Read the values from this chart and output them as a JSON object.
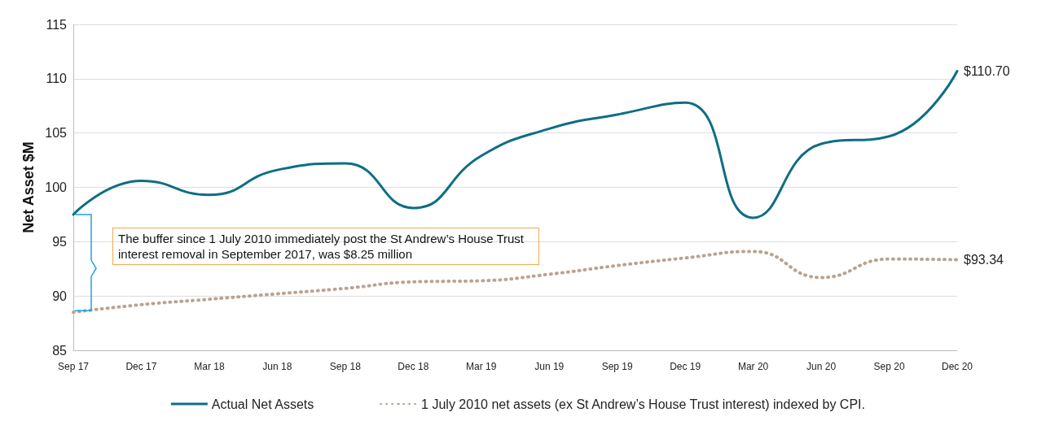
{
  "chart_data": {
    "type": "line",
    "ylabel": "Net Asset $M",
    "categories": [
      "Sep 17",
      "Dec 17",
      "Mar 18",
      "Jun 18",
      "Sep 18",
      "Dec 18",
      "Mar 19",
      "Jun 19",
      "Sep 19",
      "Dec 19",
      "Mar 20",
      "Jun 20",
      "Sep 20",
      "Dec 20"
    ],
    "series": [
      {
        "name": "Actual Net Assets",
        "color": "#0e6e85",
        "line_style": "solid",
        "values": [
          97.5,
          100.6,
          99.3,
          101.6,
          102.2,
          98.1,
          102.9,
          105.4,
          106.7,
          107.8,
          97.2,
          104.0,
          104.7,
          110.7
        ]
      },
      {
        "name": "1 July 2010 net assets (ex St Andrew’s House Trust interest) indexed by CPI.",
        "color": "#b8a392",
        "line_style": "dotted",
        "values": [
          88.5,
          89.2,
          89.7,
          90.2,
          90.7,
          91.3,
          91.4,
          92.0,
          92.8,
          93.5,
          94.1,
          91.7,
          93.4,
          93.34
        ]
      }
    ],
    "ylim": [
      85,
      115
    ],
    "yticks": [
      85,
      90,
      95,
      100,
      105,
      110,
      115
    ],
    "grid": "y",
    "legend": "bottom",
    "marker": "none",
    "annotations": [
      {
        "text": "$110.70",
        "x": "Dec 20",
        "y": 110.7
      },
      {
        "text": "$93.34",
        "x": "Dec 20",
        "y": 93.34
      },
      "The buffer since 1 July 2010 immediately post the St Andrew’s House Trust interest removal in September 2017, was $8.25 million"
    ]
  }
}
